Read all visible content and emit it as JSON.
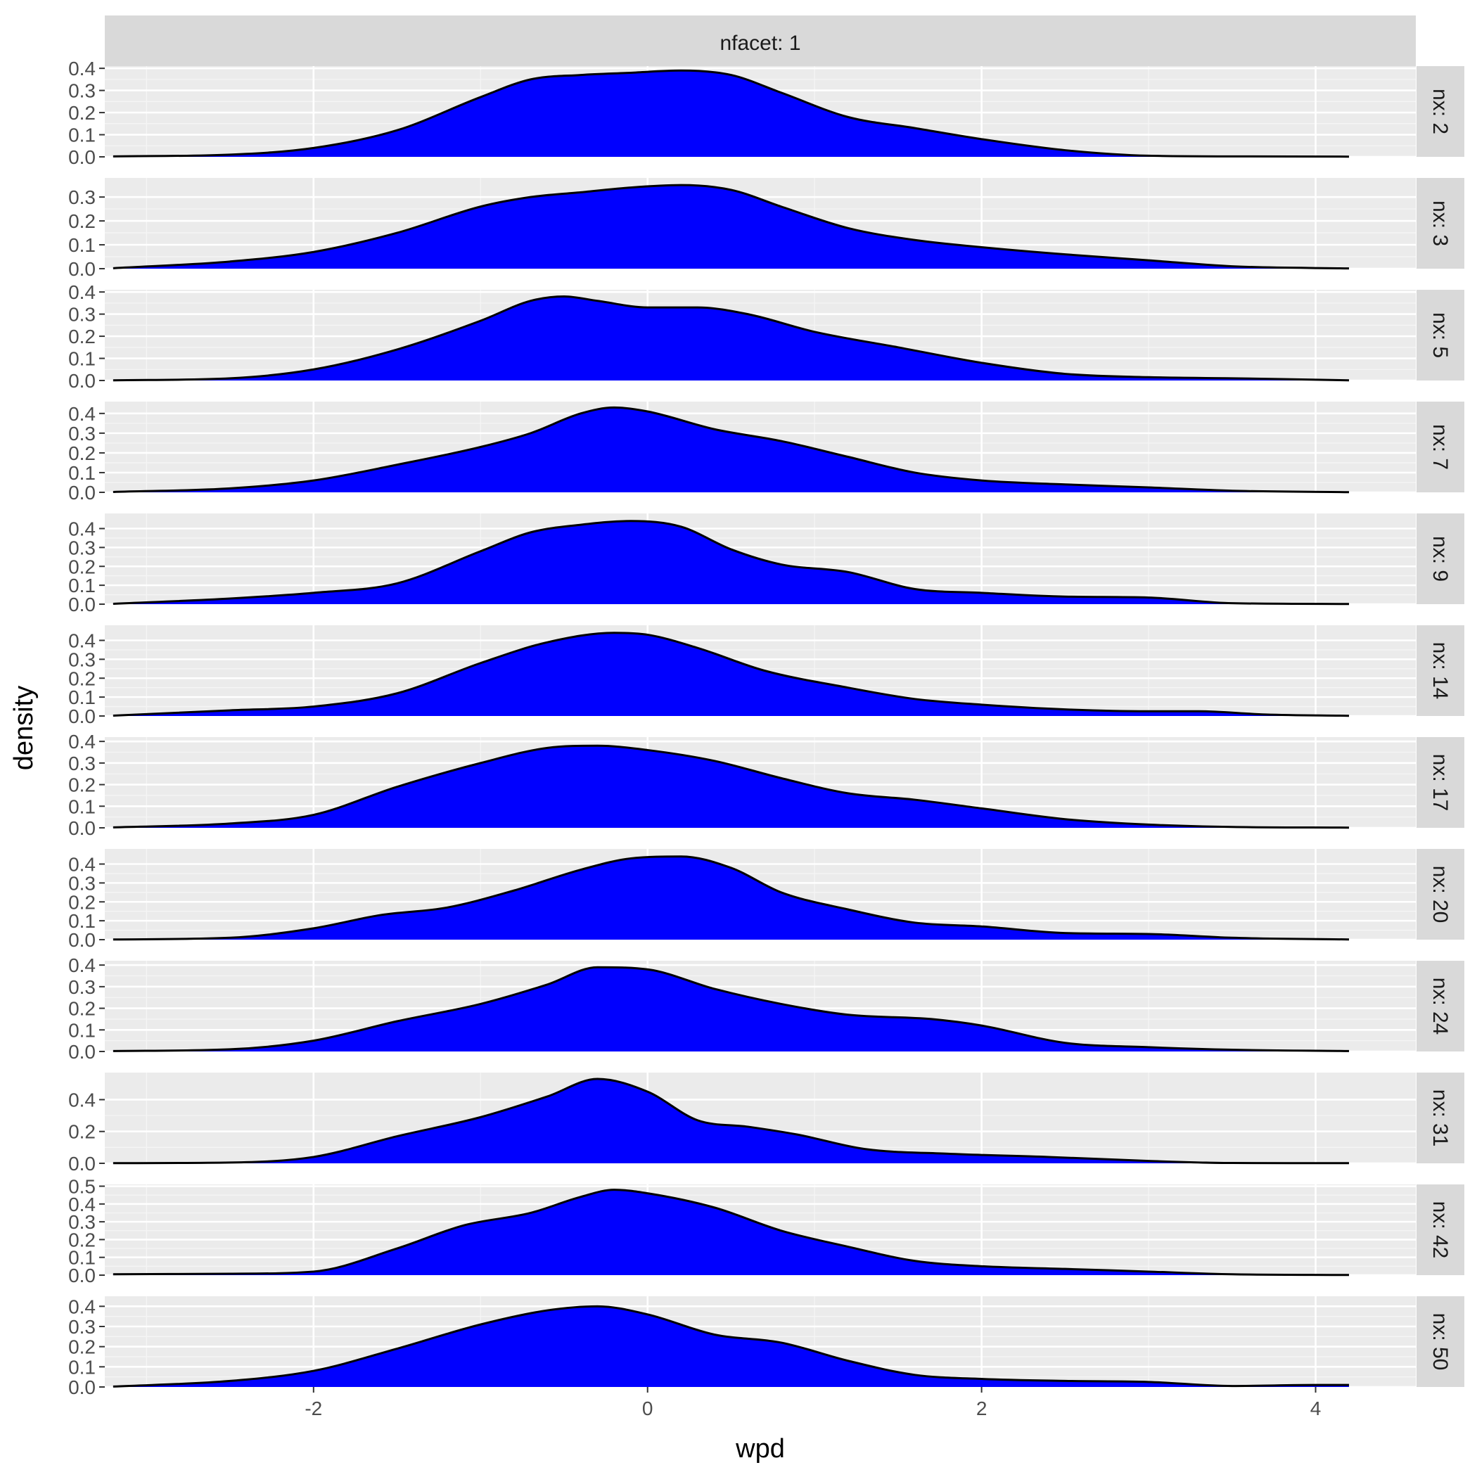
{
  "chart_data": {
    "type": "area",
    "top_strip": "nfacet: 1",
    "xlabel": "wpd",
    "ylabel": "density",
    "xlim": [
      -3.25,
      4.6
    ],
    "x_ticks": [
      -2,
      0,
      2,
      4
    ],
    "x_tick_labels": [
      "-2",
      "0",
      "2",
      "4"
    ],
    "fill_color": "#0000ff",
    "line_color": "#000000",
    "panel_background": "#ebebeb",
    "strip_background": "#d9d9d9",
    "grid": true,
    "panels": [
      {
        "strip": "nx: 2",
        "ylim": [
          0,
          0.41
        ],
        "y_ticks": [
          0,
          0.1,
          0.2,
          0.3,
          0.4
        ],
        "y_tick_labels": [
          "0.0",
          "0.1",
          "0.2",
          "0.3",
          "0.4"
        ],
        "series": {
          "x": [
            -3.2,
            -2.5,
            -2.0,
            -1.5,
            -1.0,
            -0.7,
            -0.4,
            -0.1,
            0.2,
            0.5,
            0.8,
            1.2,
            1.6,
            2.0,
            2.5,
            3.0,
            3.5,
            4.2
          ],
          "y": [
            0.002,
            0.01,
            0.04,
            0.12,
            0.27,
            0.35,
            0.37,
            0.38,
            0.39,
            0.37,
            0.29,
            0.18,
            0.13,
            0.08,
            0.03,
            0.005,
            0.002,
            0.001
          ]
        }
      },
      {
        "strip": "nx: 3",
        "ylim": [
          0,
          0.38
        ],
        "y_ticks": [
          0,
          0.1,
          0.2,
          0.3
        ],
        "y_tick_labels": [
          "0.0",
          "0.1",
          "0.2",
          "0.3"
        ],
        "series": {
          "x": [
            -3.2,
            -2.5,
            -2.0,
            -1.5,
            -1.0,
            -0.7,
            -0.4,
            -0.1,
            0.2,
            0.5,
            0.8,
            1.2,
            1.6,
            2.0,
            2.5,
            3.0,
            3.5,
            4.2
          ],
          "y": [
            0.002,
            0.03,
            0.07,
            0.15,
            0.26,
            0.3,
            0.32,
            0.34,
            0.35,
            0.33,
            0.26,
            0.17,
            0.12,
            0.09,
            0.06,
            0.035,
            0.01,
            0.001
          ]
        }
      },
      {
        "strip": "nx: 5",
        "ylim": [
          0,
          0.41
        ],
        "y_ticks": [
          0,
          0.1,
          0.2,
          0.3,
          0.4
        ],
        "y_tick_labels": [
          "0.0",
          "0.1",
          "0.2",
          "0.3",
          "0.4"
        ],
        "series": {
          "x": [
            -3.2,
            -2.5,
            -2.0,
            -1.5,
            -1.0,
            -0.7,
            -0.5,
            -0.3,
            0.0,
            0.3,
            0.6,
            1.0,
            1.5,
            2.0,
            2.5,
            3.0,
            3.5,
            4.2
          ],
          "y": [
            0.001,
            0.01,
            0.05,
            0.14,
            0.27,
            0.36,
            0.38,
            0.36,
            0.33,
            0.33,
            0.3,
            0.22,
            0.15,
            0.08,
            0.03,
            0.015,
            0.01,
            0.001
          ]
        }
      },
      {
        "strip": "nx: 7",
        "ylim": [
          0,
          0.46
        ],
        "y_ticks": [
          0,
          0.1,
          0.2,
          0.3,
          0.4
        ],
        "y_tick_labels": [
          "0.0",
          "0.1",
          "0.2",
          "0.3",
          "0.4"
        ],
        "series": {
          "x": [
            -3.2,
            -2.5,
            -2.0,
            -1.5,
            -1.0,
            -0.7,
            -0.4,
            -0.2,
            0.0,
            0.4,
            0.8,
            1.2,
            1.6,
            2.0,
            2.5,
            3.0,
            3.5,
            4.2
          ],
          "y": [
            0.002,
            0.02,
            0.06,
            0.14,
            0.23,
            0.3,
            0.4,
            0.43,
            0.41,
            0.32,
            0.26,
            0.18,
            0.1,
            0.06,
            0.04,
            0.025,
            0.008,
            0.001
          ]
        }
      },
      {
        "strip": "nx: 9",
        "ylim": [
          0,
          0.48
        ],
        "y_ticks": [
          0,
          0.1,
          0.2,
          0.3,
          0.4
        ],
        "y_tick_labels": [
          "0.0",
          "0.1",
          "0.2",
          "0.3",
          "0.4"
        ],
        "series": {
          "x": [
            -3.2,
            -2.5,
            -2.0,
            -1.5,
            -1.0,
            -0.7,
            -0.4,
            -0.1,
            0.2,
            0.5,
            0.8,
            1.2,
            1.6,
            2.0,
            2.5,
            3.0,
            3.5,
            4.2
          ],
          "y": [
            0.002,
            0.03,
            0.06,
            0.11,
            0.28,
            0.38,
            0.42,
            0.44,
            0.41,
            0.29,
            0.21,
            0.17,
            0.08,
            0.06,
            0.04,
            0.035,
            0.005,
            0.001
          ]
        }
      },
      {
        "strip": "nx: 14",
        "ylim": [
          0,
          0.48
        ],
        "y_ticks": [
          0,
          0.1,
          0.2,
          0.3,
          0.4
        ],
        "y_tick_labels": [
          "0.0",
          "0.1",
          "0.2",
          "0.3",
          "0.4"
        ],
        "series": {
          "x": [
            -3.2,
            -2.5,
            -2.0,
            -1.5,
            -1.0,
            -0.6,
            -0.2,
            0.0,
            0.3,
            0.7,
            1.2,
            1.6,
            2.0,
            2.5,
            3.0,
            3.3,
            3.7,
            4.2
          ],
          "y": [
            0.002,
            0.03,
            0.05,
            0.12,
            0.28,
            0.39,
            0.44,
            0.43,
            0.36,
            0.24,
            0.15,
            0.09,
            0.06,
            0.035,
            0.025,
            0.025,
            0.008,
            0.001
          ]
        }
      },
      {
        "strip": "nx: 17",
        "ylim": [
          0,
          0.42
        ],
        "y_ticks": [
          0,
          0.1,
          0.2,
          0.3,
          0.4
        ],
        "y_tick_labels": [
          "0.0",
          "0.1",
          "0.2",
          "0.3",
          "0.4"
        ],
        "series": {
          "x": [
            -3.2,
            -2.5,
            -2.0,
            -1.5,
            -1.0,
            -0.6,
            -0.3,
            0.0,
            0.4,
            0.8,
            1.2,
            1.6,
            2.0,
            2.5,
            3.0,
            3.5,
            4.2
          ],
          "y": [
            0.002,
            0.02,
            0.06,
            0.19,
            0.3,
            0.37,
            0.38,
            0.36,
            0.31,
            0.23,
            0.16,
            0.13,
            0.09,
            0.04,
            0.015,
            0.004,
            0.001
          ]
        }
      },
      {
        "strip": "nx: 20",
        "ylim": [
          0,
          0.48
        ],
        "y_ticks": [
          0,
          0.1,
          0.2,
          0.3,
          0.4
        ],
        "y_tick_labels": [
          "0.0",
          "0.1",
          "0.2",
          "0.3",
          "0.4"
        ],
        "series": {
          "x": [
            -3.2,
            -2.5,
            -2.0,
            -1.6,
            -1.2,
            -0.8,
            -0.4,
            -0.1,
            0.2,
            0.5,
            0.8,
            1.2,
            1.6,
            2.0,
            2.5,
            3.0,
            3.5,
            4.2
          ],
          "y": [
            0.001,
            0.01,
            0.06,
            0.13,
            0.17,
            0.26,
            0.37,
            0.43,
            0.44,
            0.38,
            0.25,
            0.16,
            0.09,
            0.07,
            0.035,
            0.03,
            0.01,
            0.001
          ]
        }
      },
      {
        "strip": "nx: 24",
        "ylim": [
          0,
          0.42
        ],
        "y_ticks": [
          0,
          0.1,
          0.2,
          0.3,
          0.4
        ],
        "y_tick_labels": [
          "0.0",
          "0.1",
          "0.2",
          "0.3",
          "0.4"
        ],
        "series": {
          "x": [
            -3.2,
            -2.5,
            -2.0,
            -1.5,
            -1.0,
            -0.6,
            -0.3,
            0.0,
            0.4,
            0.8,
            1.2,
            1.7,
            2.0,
            2.5,
            3.0,
            3.5,
            4.2
          ],
          "y": [
            0.002,
            0.01,
            0.05,
            0.14,
            0.22,
            0.31,
            0.39,
            0.38,
            0.29,
            0.22,
            0.17,
            0.15,
            0.12,
            0.04,
            0.02,
            0.008,
            0.002
          ]
        }
      },
      {
        "strip": "nx: 31",
        "ylim": [
          0,
          0.57
        ],
        "y_ticks": [
          0,
          0.2,
          0.4
        ],
        "y_tick_labels": [
          "0.0",
          "0.2",
          "0.4"
        ],
        "series": {
          "x": [
            -3.2,
            -2.5,
            -2.0,
            -1.5,
            -1.0,
            -0.6,
            -0.3,
            0.0,
            0.3,
            0.6,
            0.9,
            1.3,
            1.8,
            2.4,
            3.0,
            3.5,
            4.2
          ],
          "y": [
            0.001,
            0.005,
            0.04,
            0.17,
            0.29,
            0.42,
            0.53,
            0.45,
            0.27,
            0.23,
            0.18,
            0.09,
            0.06,
            0.04,
            0.015,
            0.002,
            0.001
          ]
        }
      },
      {
        "strip": "nx: 42",
        "ylim": [
          0,
          0.51
        ],
        "y_ticks": [
          0,
          0.1,
          0.2,
          0.3,
          0.4,
          0.5
        ],
        "y_tick_labels": [
          "0.0",
          "0.1",
          "0.2",
          "0.3",
          "0.4",
          "0.5"
        ],
        "series": {
          "x": [
            -3.2,
            -2.5,
            -2.0,
            -1.5,
            -1.1,
            -0.7,
            -0.4,
            -0.2,
            0.0,
            0.4,
            0.8,
            1.2,
            1.6,
            2.0,
            2.5,
            3.0,
            3.5,
            4.2
          ],
          "y": [
            0.005,
            0.008,
            0.02,
            0.15,
            0.28,
            0.35,
            0.44,
            0.48,
            0.46,
            0.38,
            0.25,
            0.16,
            0.08,
            0.05,
            0.035,
            0.02,
            0.005,
            0.001
          ]
        }
      },
      {
        "strip": "nx: 50",
        "ylim": [
          0,
          0.45
        ],
        "y_ticks": [
          0,
          0.1,
          0.2,
          0.3,
          0.4
        ],
        "y_tick_labels": [
          "0.0",
          "0.1",
          "0.2",
          "0.3",
          "0.4"
        ],
        "series": {
          "x": [
            -3.2,
            -2.5,
            -2.0,
            -1.5,
            -1.0,
            -0.6,
            -0.3,
            0.0,
            0.4,
            0.8,
            1.2,
            1.6,
            2.0,
            2.5,
            3.0,
            3.5,
            4.0,
            4.2
          ],
          "y": [
            0.002,
            0.03,
            0.08,
            0.19,
            0.31,
            0.38,
            0.4,
            0.36,
            0.26,
            0.22,
            0.13,
            0.06,
            0.04,
            0.03,
            0.025,
            0.005,
            0.01,
            0.01
          ]
        }
      }
    ]
  }
}
